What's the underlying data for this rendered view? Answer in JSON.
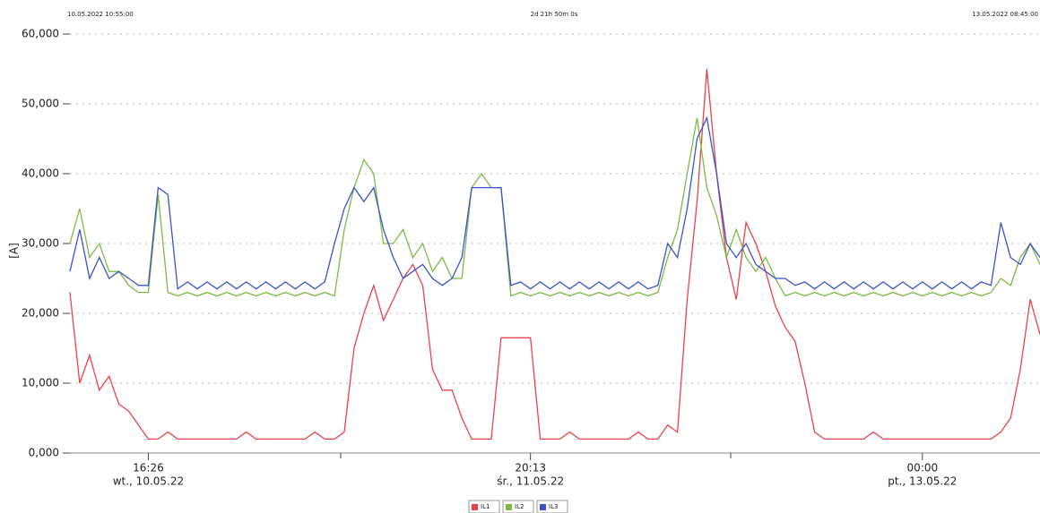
{
  "chart_data": {
    "type": "line",
    "annotations": [
      "10.05.2022 10:55:00",
      "2d 21h 50m 0s",
      "13.05.2022 08:45:00"
    ],
    "y_label": "[A]",
    "ylim": [
      0,
      60
    ],
    "yticks": [
      {
        "value": 0,
        "label": "0,000"
      },
      {
        "value": 10,
        "label": "10,000"
      },
      {
        "value": 20,
        "label": "20,000"
      },
      {
        "value": 30,
        "label": "30,000"
      },
      {
        "value": 40,
        "label": "40,000"
      },
      {
        "value": 50,
        "label": "50,000"
      },
      {
        "value": 60,
        "label": "60,000"
      }
    ],
    "grid": true,
    "legend": "bottom",
    "categories": [
      null,
      null,
      null,
      null,
      null,
      null,
      null,
      null,
      [
        "16:26",
        "wt., 10.05.22"
      ],
      null,
      null,
      null,
      null,
      null,
      null,
      null,
      null,
      null,
      null,
      null,
      null,
      null,
      null,
      null,
      null,
      null,
      null,
      null,
      null,
      null,
      null,
      null,
      null,
      null,
      null,
      null,
      null,
      null,
      null,
      null,
      null,
      null,
      null,
      null,
      null,
      null,
      null,
      [
        "20:13",
        "śr., 11.05.22"
      ],
      null,
      null,
      null,
      null,
      null,
      null,
      null,
      null,
      null,
      null,
      null,
      null,
      null,
      null,
      null,
      null,
      null,
      null,
      null,
      null,
      null,
      null,
      null,
      null,
      null,
      null,
      null,
      null,
      null,
      null,
      null,
      null,
      null,
      null,
      null,
      null,
      null,
      null,
      null,
      [
        "00:00",
        "pt., 13.05.22"
      ],
      null,
      null,
      null,
      null,
      null,
      null,
      null,
      null,
      null,
      null,
      null,
      null
    ],
    "series": [
      {
        "name": "IL1",
        "color": "#e8424a",
        "values": [
          23,
          10,
          14,
          9,
          11,
          7,
          6,
          4,
          2,
          2,
          3,
          2,
          2,
          2,
          2,
          2,
          2,
          2,
          3,
          2,
          2,
          2,
          2,
          2,
          2,
          3,
          2,
          2,
          3,
          15,
          20,
          24,
          19,
          22,
          25,
          27,
          24,
          12,
          9,
          9,
          5,
          2,
          2,
          2,
          16.5,
          16.5,
          16.5,
          16.5,
          2,
          2,
          2,
          3,
          2,
          2,
          2,
          2,
          2,
          2,
          3,
          2,
          2,
          4,
          3,
          22,
          36,
          55,
          40,
          28,
          22,
          33,
          30,
          26,
          21,
          18,
          16,
          10,
          3,
          2,
          2,
          2,
          2,
          2,
          3,
          2,
          2,
          2,
          2,
          2,
          2,
          2,
          2,
          2,
          2,
          2,
          2,
          3,
          5,
          12,
          22,
          17
        ]
      },
      {
        "name": "IL2",
        "color": "#7dbb45",
        "values": [
          30,
          35,
          28,
          30,
          26,
          26,
          24,
          23,
          23,
          37,
          23,
          22.5,
          23,
          22.5,
          23,
          22.5,
          23,
          22.5,
          23,
          22.5,
          23,
          22.5,
          23,
          22.5,
          23,
          22.5,
          23,
          22.5,
          32,
          38,
          42,
          40,
          30,
          30,
          32,
          28,
          30,
          26,
          28,
          25,
          25,
          38,
          40,
          38,
          38,
          22.5,
          23,
          22.5,
          23,
          22.5,
          23,
          22.5,
          23,
          22.5,
          23,
          22.5,
          23,
          22.5,
          23,
          22.5,
          23,
          28,
          32,
          40,
          48,
          38,
          34,
          28,
          32,
          28,
          26,
          28,
          25,
          22.5,
          23,
          22.5,
          23,
          22.5,
          23,
          22.5,
          23,
          22.5,
          23,
          22.5,
          23,
          22.5,
          23,
          22.5,
          23,
          22.5,
          23,
          22.5,
          23,
          22.5,
          23,
          25,
          24,
          28,
          30,
          27
        ]
      },
      {
        "name": "IL3",
        "color": "#3a54c8",
        "values": [
          26,
          32,
          25,
          28,
          25,
          26,
          25,
          24,
          24,
          38,
          37,
          23.5,
          24.5,
          23.5,
          24.5,
          23.5,
          24.5,
          23.5,
          24.5,
          23.5,
          24.5,
          23.5,
          24.5,
          23.5,
          24.5,
          23.5,
          24.5,
          30,
          35,
          38,
          36,
          38,
          32,
          28,
          25,
          26,
          27,
          25,
          24,
          25,
          28,
          38,
          38,
          38,
          38,
          24,
          24.5,
          23.5,
          24.5,
          23.5,
          24.5,
          23.5,
          24.5,
          23.5,
          24.5,
          23.5,
          24.5,
          23.5,
          24.5,
          23.5,
          24,
          30,
          28,
          35,
          45,
          48,
          40,
          30,
          28,
          30,
          27,
          26,
          25,
          25,
          24,
          24.5,
          23.5,
          24.5,
          23.5,
          24.5,
          23.5,
          24.5,
          23.5,
          24.5,
          23.5,
          24.5,
          23.5,
          24.5,
          23.5,
          24.5,
          23.5,
          24.5,
          23.5,
          24.5,
          24,
          33,
          28,
          27,
          30,
          28
        ]
      }
    ]
  }
}
